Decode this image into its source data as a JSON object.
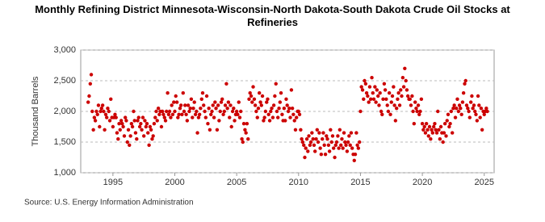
{
  "chart_data": {
    "type": "scatter",
    "title": "Monthly Refining District Minnesota-Wisconsin-North Dakota-South Dakota Crude Oil Stocks at Refineries",
    "y_label": "Thousand Barrels",
    "source": "Source: U.S. Energy Information Administration",
    "color": "#cc0000",
    "grid": true,
    "xlim": [
      1992.4,
      2025.8
    ],
    "ylim": [
      1000,
      3000
    ],
    "xticks": [
      1995,
      2000,
      2005,
      2010,
      2015,
      2020,
      2025
    ],
    "yticks": [
      {
        "value": 1000,
        "label": "1,000"
      },
      {
        "value": 1500,
        "label": "1,500"
      },
      {
        "value": 2000,
        "label": "2,000"
      },
      {
        "value": 2500,
        "label": "2,500"
      },
      {
        "value": 3000,
        "label": "3,000"
      }
    ],
    "x": [
      1993,
      1993.08,
      1993.17,
      1993.25,
      1993.33,
      1993.42,
      1993.5,
      1993.58,
      1993.67,
      1993.75,
      1993.83,
      1993.92,
      1994,
      1994.08,
      1994.17,
      1994.25,
      1994.33,
      1994.42,
      1994.5,
      1994.58,
      1994.67,
      1994.75,
      1994.83,
      1994.92,
      1995,
      1995.08,
      1995.17,
      1995.25,
      1995.33,
      1995.42,
      1995.5,
      1995.58,
      1995.67,
      1995.75,
      1995.83,
      1995.92,
      1996,
      1996.08,
      1996.17,
      1996.25,
      1996.33,
      1996.42,
      1996.5,
      1996.58,
      1996.67,
      1996.75,
      1996.83,
      1996.92,
      1997,
      1997.08,
      1997.17,
      1997.25,
      1997.33,
      1997.42,
      1997.5,
      1997.58,
      1997.67,
      1997.75,
      1997.83,
      1997.92,
      1998,
      1998.08,
      1998.17,
      1998.25,
      1998.33,
      1998.42,
      1998.5,
      1998.58,
      1998.67,
      1998.75,
      1998.83,
      1998.92,
      1999,
      1999.08,
      1999.17,
      1999.25,
      1999.33,
      1999.42,
      1999.5,
      1999.58,
      1999.67,
      1999.75,
      1999.83,
      1999.92,
      2000,
      2000.08,
      2000.17,
      2000.25,
      2000.33,
      2000.42,
      2000.5,
      2000.58,
      2000.67,
      2000.75,
      2000.83,
      2000.92,
      2001,
      2001.08,
      2001.17,
      2001.25,
      2001.33,
      2001.42,
      2001.5,
      2001.58,
      2001.67,
      2001.75,
      2001.83,
      2001.92,
      2002,
      2002.08,
      2002.17,
      2002.25,
      2002.33,
      2002.42,
      2002.5,
      2002.58,
      2002.67,
      2002.75,
      2002.83,
      2002.92,
      2003,
      2003.08,
      2003.17,
      2003.25,
      2003.33,
      2003.42,
      2003.5,
      2003.58,
      2003.67,
      2003.75,
      2003.83,
      2003.92,
      2004,
      2004.08,
      2004.17,
      2004.25,
      2004.33,
      2004.42,
      2004.5,
      2004.58,
      2004.67,
      2004.75,
      2004.83,
      2004.92,
      2005,
      2005.08,
      2005.17,
      2005.25,
      2005.33,
      2005.42,
      2005.5,
      2005.58,
      2005.67,
      2005.75,
      2005.83,
      2005.92,
      2006,
      2006.08,
      2006.17,
      2006.25,
      2006.33,
      2006.42,
      2006.5,
      2006.58,
      2006.67,
      2006.75,
      2006.83,
      2006.92,
      2007,
      2007.08,
      2007.17,
      2007.25,
      2007.33,
      2007.42,
      2007.5,
      2007.58,
      2007.67,
      2007.75,
      2007.83,
      2007.92,
      2008,
      2008.08,
      2008.17,
      2008.25,
      2008.33,
      2008.42,
      2008.5,
      2008.58,
      2008.67,
      2008.75,
      2008.83,
      2008.92,
      2009,
      2009.08,
      2009.17,
      2009.25,
      2009.33,
      2009.42,
      2009.5,
      2009.58,
      2009.67,
      2009.75,
      2009.83,
      2009.92,
      2010,
      2010.08,
      2010.17,
      2010.25,
      2010.33,
      2010.42,
      2010.5,
      2010.58,
      2010.67,
      2010.75,
      2010.83,
      2010.92,
      2011,
      2011.08,
      2011.17,
      2011.25,
      2011.33,
      2011.42,
      2011.5,
      2011.58,
      2011.67,
      2011.75,
      2011.83,
      2011.92,
      2012,
      2012.08,
      2012.17,
      2012.25,
      2012.33,
      2012.42,
      2012.5,
      2012.58,
      2012.67,
      2012.75,
      2012.83,
      2012.92,
      2013,
      2013.08,
      2013.17,
      2013.25,
      2013.33,
      2013.42,
      2013.5,
      2013.58,
      2013.67,
      2013.75,
      2013.83,
      2013.92,
      2014,
      2014.08,
      2014.17,
      2014.25,
      2014.33,
      2014.42,
      2014.5,
      2014.58,
      2014.67,
      2014.75,
      2014.83,
      2014.92,
      2015,
      2015.08,
      2015.17,
      2015.25,
      2015.33,
      2015.42,
      2015.5,
      2015.58,
      2015.67,
      2015.75,
      2015.83,
      2015.92,
      2016,
      2016.08,
      2016.17,
      2016.25,
      2016.33,
      2016.42,
      2016.5,
      2016.58,
      2016.67,
      2016.75,
      2016.83,
      2016.92,
      2017,
      2017.08,
      2017.17,
      2017.25,
      2017.33,
      2017.42,
      2017.5,
      2017.58,
      2017.67,
      2017.75,
      2017.83,
      2017.92,
      2018,
      2018.08,
      2018.17,
      2018.25,
      2018.33,
      2018.42,
      2018.5,
      2018.58,
      2018.67,
      2018.75,
      2018.83,
      2018.92,
      2019,
      2019.08,
      2019.17,
      2019.25,
      2019.33,
      2019.42,
      2019.5,
      2019.58,
      2019.67,
      2019.75,
      2019.83,
      2019.92,
      2020,
      2020.08,
      2020.17,
      2020.25,
      2020.33,
      2020.42,
      2020.5,
      2020.58,
      2020.67,
      2020.75,
      2020.83,
      2020.92,
      2021,
      2021.08,
      2021.17,
      2021.25,
      2021.33,
      2021.42,
      2021.5,
      2021.58,
      2021.67,
      2021.75,
      2021.83,
      2021.92,
      2022,
      2022.08,
      2022.17,
      2022.25,
      2022.33,
      2022.42,
      2022.5,
      2022.58,
      2022.67,
      2022.75,
      2022.83,
      2022.92,
      2023,
      2023.08,
      2023.17,
      2023.25,
      2023.33,
      2023.42,
      2023.5,
      2023.58,
      2023.67,
      2023.75,
      2023.83,
      2023.92,
      2024,
      2024.08,
      2024.17,
      2024.25,
      2024.33,
      2024.42,
      2024.5,
      2024.58,
      2024.67,
      2024.75,
      2024.83,
      2024.92,
      2025,
      2025.08,
      2025.17,
      2025.25
    ],
    "values": [
      2150,
      2250,
      2450,
      2600,
      2000,
      1700,
      1900,
      1850,
      2000,
      1950,
      2100,
      1750,
      2000,
      2050,
      2100,
      2000,
      1700,
      1950,
      1900,
      2050,
      2000,
      1850,
      2200,
      1900,
      1750,
      1900,
      1950,
      1900,
      1650,
      1550,
      1800,
      1700,
      1850,
      1800,
      1750,
      1600,
      1900,
      1850,
      1500,
      1700,
      1450,
      1600,
      1800,
      1750,
      2000,
      1850,
      1650,
      1550,
      1850,
      1900,
      1750,
      1800,
      1700,
      1900,
      1600,
      1850,
      1750,
      1800,
      1650,
      1450,
      1750,
      1700,
      1550,
      1600,
      1800,
      1900,
      2000,
      1850,
      2050,
      1950,
      2000,
      1750,
      2000,
      1950,
      1900,
      1850,
      2000,
      2300,
      1950,
      2000,
      1900,
      2100,
      1950,
      2150,
      2000,
      2250,
      2150,
      1900,
      1950,
      2050,
      2100,
      1950,
      2300,
      2000,
      2100,
      1950,
      1850,
      2100,
      2000,
      2050,
      2200,
      1900,
      2050,
      2150,
      1950,
      2000,
      1650,
      1900,
      1950,
      2050,
      2200,
      2300,
      2100,
      2000,
      1900,
      2250,
      1800,
      2050,
      1700,
      1950,
      2000,
      2100,
      1900,
      2150,
      2050,
      1700,
      2100,
      1850,
      2000,
      2150,
      2200,
      1950,
      2000,
      2100,
      2450,
      2050,
      2150,
      1900,
      2100,
      1750,
      2000,
      2050,
      1850,
      1950,
      2000,
      1950,
      2150,
      1900,
      2000,
      1550,
      1500,
      1800,
      1700,
      1650,
      1800,
      1550,
      2200,
      2300,
      2250,
      2150,
      2400,
      2200,
      2100,
      2000,
      1900,
      2050,
      2300,
      2150,
      2100,
      2250,
      1850,
      1900,
      2000,
      2150,
      2200,
      1950,
      1850,
      2000,
      2050,
      1900,
      2100,
      2250,
      2450,
      2000,
      1900,
      2050,
      2150,
      2300,
      1950,
      1850,
      2050,
      1850,
      2200,
      2100,
      2000,
      2050,
      1900,
      2350,
      2050,
      1950,
      1850,
      1700,
      1900,
      2000,
      2000,
      1950,
      1700,
      1550,
      1500,
      1450,
      1250,
      1400,
      1550,
      1350,
      1600,
      1450,
      1500,
      1650,
      1550,
      1450,
      1350,
      1550,
      1700,
      1500,
      1650,
      1400,
      1300,
      1550,
      1650,
      1450,
      1300,
      1600,
      1550,
      1450,
      1350,
      1700,
      1500,
      1600,
      1400,
      1250,
      1450,
      1500,
      1600,
      1400,
      1700,
      1450,
      1550,
      1400,
      1650,
      1500,
      1450,
      1350,
      1500,
      1600,
      1450,
      1650,
      1400,
      1300,
      1200,
      1300,
      1650,
      1450,
      1400,
      1500,
      2000,
      2400,
      2350,
      2200,
      2500,
      2450,
      2300,
      2250,
      2150,
      2400,
      2200,
      2550,
      2300,
      2200,
      2400,
      2150,
      2350,
      2250,
      2100,
      2300,
      2000,
      1950,
      2200,
      2450,
      2350,
      2200,
      2100,
      2000,
      2300,
      1950,
      2150,
      2250,
      2400,
      2100,
      1850,
      2050,
      2200,
      2300,
      2100,
      2350,
      2250,
      2550,
      2400,
      2700,
      2500,
      2350,
      2250,
      2200,
      2200,
      2100,
      2250,
      2000,
      1800,
      2150,
      2050,
      2000,
      2100,
      1950,
      2000,
      2200,
      1800,
      1700,
      1750,
      1650,
      1800,
      1700,
      1600,
      1750,
      1550,
      1700,
      1650,
      1750,
      1800,
      1700,
      1650,
      2000,
      1700,
      1550,
      1750,
      1650,
      1500,
      1650,
      1800,
      1600,
      1850,
      1950,
      1750,
      1800,
      2000,
      1650,
      2050,
      2100,
      1900,
      2050,
      2200,
      2000,
      2100,
      2050,
      1950,
      2150,
      2300,
      2450,
      2500,
      2100,
      2050,
      2000,
      1900,
      2150,
      2250,
      2050,
      2100,
      2000,
      1950,
      1850,
      2250,
      2100,
      1900,
      2050,
      1700,
      2000,
      1950,
      2000,
      2050,
      2000
    ]
  }
}
